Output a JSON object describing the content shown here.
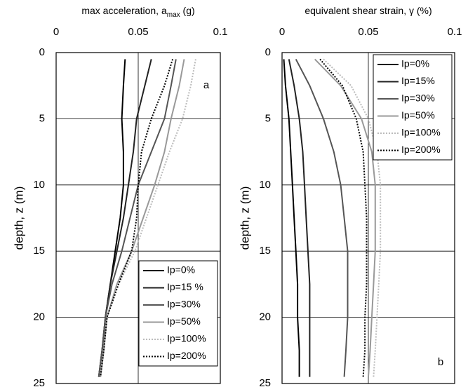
{
  "chart_data": [
    {
      "type": "line",
      "xlabel": "max acceleration, a",
      "xlabel_sub": "max",
      "xlabel_end": " (g)",
      "ylabel": "depth, z (m)",
      "annotation": "a",
      "xlim": [
        0,
        0.1
      ],
      "xticks": [
        0,
        0.05,
        0.1
      ],
      "ylim": [
        0,
        25
      ],
      "yticks": [
        0,
        5,
        10,
        15,
        20,
        25
      ],
      "y_inverted": true,
      "grid": true,
      "legend": "lower right",
      "depth": [
        0.5,
        2.5,
        5,
        7.5,
        10,
        12.5,
        15,
        17.5,
        20,
        22.5,
        24.5
      ],
      "series": [
        {
          "name": "Ip=0%",
          "color": "#000000",
          "dash": "solid",
          "values": [
            0.042,
            0.041,
            0.04,
            0.041,
            0.041,
            0.039,
            0.036,
            0.033,
            0.03,
            0.028,
            0.026
          ]
        },
        {
          "name": "Ip=15 %",
          "color": "#222222",
          "dash": "solid",
          "values": [
            0.058,
            0.054,
            0.049,
            0.047,
            0.044,
            0.041,
            0.037,
            0.033,
            0.03,
            0.028,
            0.026
          ]
        },
        {
          "name": "Ip=30%",
          "color": "#555555",
          "dash": "solid",
          "values": [
            0.073,
            0.07,
            0.066,
            0.058,
            0.05,
            0.045,
            0.04,
            0.034,
            0.03,
            0.028,
            0.026
          ]
        },
        {
          "name": "Ip=50%",
          "color": "#999999",
          "dash": "solid",
          "values": [
            0.078,
            0.075,
            0.07,
            0.066,
            0.06,
            0.053,
            0.046,
            0.037,
            0.031,
            0.029,
            0.027
          ]
        },
        {
          "name": "Ip=100%",
          "color": "#bbbbbb",
          "dash": "dotted",
          "values": [
            0.085,
            0.082,
            0.077,
            0.069,
            0.062,
            0.055,
            0.048,
            0.038,
            0.031,
            0.029,
            0.027
          ]
        },
        {
          "name": "Ip=200%",
          "color": "#000000",
          "dash": "dotted",
          "values": [
            0.071,
            0.066,
            0.058,
            0.052,
            0.05,
            0.049,
            0.046,
            0.038,
            0.031,
            0.029,
            0.027
          ]
        }
      ]
    },
    {
      "type": "line",
      "xlabel": "equivalent shear strain, γ (%)",
      "ylabel": "depth, z (m)",
      "annotation": "b",
      "xlim": [
        0,
        0.1
      ],
      "xticks": [
        0,
        0.05,
        0.1
      ],
      "ylim": [
        0,
        25
      ],
      "yticks": [
        0,
        5,
        10,
        15,
        20,
        25
      ],
      "y_inverted": true,
      "grid": true,
      "legend": "upper right",
      "depth": [
        0.5,
        2.5,
        5,
        7.5,
        10,
        12.5,
        15,
        17.5,
        20,
        22.5,
        24.5
      ],
      "series": [
        {
          "name": "Ip=0%",
          "color": "#000000",
          "dash": "solid",
          "values": [
            0.001,
            0.002,
            0.004,
            0.005,
            0.006,
            0.007,
            0.008,
            0.009,
            0.009,
            0.01,
            0.01
          ]
        },
        {
          "name": "Ip=15%",
          "color": "#222222",
          "dash": "solid",
          "values": [
            0.004,
            0.007,
            0.01,
            0.012,
            0.013,
            0.014,
            0.015,
            0.016,
            0.016,
            0.016,
            0.016
          ]
        },
        {
          "name": "Ip=30%",
          "color": "#555555",
          "dash": "solid",
          "values": [
            0.008,
            0.016,
            0.024,
            0.03,
            0.034,
            0.036,
            0.038,
            0.038,
            0.038,
            0.037,
            0.036
          ]
        },
        {
          "name": "Ip=50%",
          "color": "#999999",
          "dash": "solid",
          "values": [
            0.019,
            0.034,
            0.046,
            0.052,
            0.054,
            0.054,
            0.054,
            0.053,
            0.052,
            0.051,
            0.05
          ]
        },
        {
          "name": "Ip=100%",
          "color": "#bbbbbb",
          "dash": "dotted",
          "values": [
            0.024,
            0.04,
            0.05,
            0.055,
            0.057,
            0.057,
            0.057,
            0.056,
            0.055,
            0.054,
            0.053
          ]
        },
        {
          "name": "Ip=200%",
          "color": "#000000",
          "dash": "dotted",
          "values": [
            0.022,
            0.035,
            0.043,
            0.047,
            0.048,
            0.049,
            0.049,
            0.049,
            0.048,
            0.048,
            0.047
          ]
        }
      ]
    }
  ]
}
